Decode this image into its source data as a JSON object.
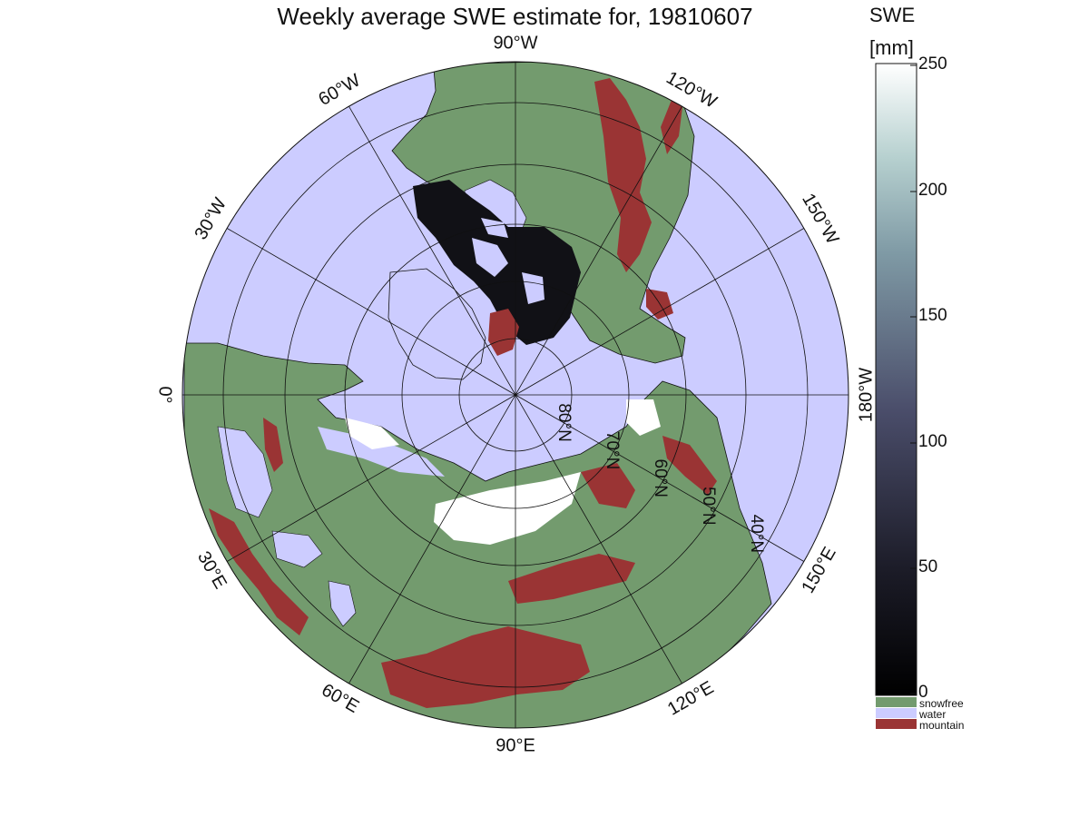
{
  "title": "Weekly average SWE estimate for, 19810607",
  "colorbar": {
    "title_line1": "SWE",
    "title_line2": "[mm]",
    "ticks": [
      "250",
      "200",
      "150",
      "100",
      "50",
      "0"
    ],
    "categories": [
      {
        "label": "snowfree",
        "color": "#739b6e"
      },
      {
        "label": "water",
        "color": "#ccccff"
      },
      {
        "label": "mountain",
        "color": "#9a3434"
      }
    ]
  },
  "map": {
    "projection": "north-polar-stereographic",
    "min_latitude": 30,
    "colors": {
      "water": "#ccccff",
      "land": "#739b6e",
      "mountain": "#9a3434",
      "snow_deep": "#111116",
      "snow_shallow": "#ffffff"
    },
    "meridian_labels": [
      {
        "text": "90°W",
        "lon": -90
      },
      {
        "text": "120°W",
        "lon": -120
      },
      {
        "text": "150°W",
        "lon": -150
      },
      {
        "text": "180°W",
        "lon": 180
      },
      {
        "text": "150°E",
        "lon": 150
      },
      {
        "text": "120°E",
        "lon": 120
      },
      {
        "text": "90°E",
        "lon": 90
      },
      {
        "text": "60°E",
        "lon": 60
      },
      {
        "text": "30°E",
        "lon": 30
      },
      {
        "text": "0°",
        "lon": 0
      },
      {
        "text": "30°W",
        "lon": -30
      },
      {
        "text": "60°W",
        "lon": -60
      }
    ],
    "parallel_labels": [
      {
        "text": "80°N",
        "lat": 80
      },
      {
        "text": "70°N",
        "lat": 70
      },
      {
        "text": "60°N",
        "lat": 60
      },
      {
        "text": "50°N",
        "lat": 50
      },
      {
        "text": "40°N",
        "lat": 40
      }
    ]
  }
}
